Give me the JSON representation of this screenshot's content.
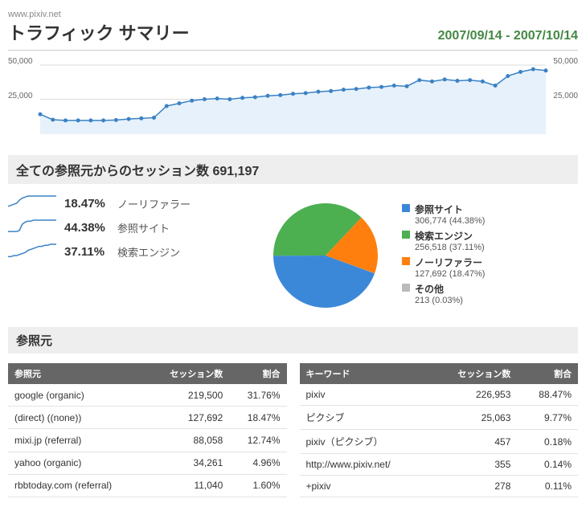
{
  "site_url": "www.pixiv.net",
  "page_title": "トラフィック サマリー",
  "date_range": "2007/09/14 - 2007/10/14",
  "main_chart": {
    "type": "area",
    "ymax": 50000,
    "ymid": 25000,
    "ymax_label": "50,000",
    "ymid_label": "25,000",
    "stroke": "#3b82c4",
    "fill": "#e6f1fb",
    "dot_fill": "#3b82c4",
    "grid_color": "#dddddd",
    "values": [
      14000,
      10000,
      9500,
      9500,
      9500,
      9500,
      9800,
      10500,
      11000,
      11500,
      20000,
      22000,
      24000,
      25000,
      25500,
      25000,
      26000,
      26500,
      27500,
      28000,
      29000,
      29500,
      30500,
      31000,
      32000,
      32500,
      33500,
      34000,
      35000,
      34500,
      39000,
      38000,
      39500,
      38500,
      39000,
      38000,
      35000,
      42000,
      45000,
      47000,
      46000
    ]
  },
  "summary_text_prefix": "全ての参照元からのセッション数 ",
  "summary_value": "691,197",
  "sources": [
    {
      "pct": "18.47%",
      "label": "ノーリファラー",
      "spark": [
        4,
        5,
        6,
        7,
        10,
        12,
        13,
        14,
        14,
        14,
        14,
        14,
        14,
        14,
        14,
        14,
        14,
        14
      ],
      "color": "#3b82c4"
    },
    {
      "pct": "44.38%",
      "label": "参照サイト",
      "spark": [
        3,
        3,
        3,
        3,
        4,
        10,
        12,
        13,
        13,
        14,
        14,
        14,
        14,
        14,
        14,
        14,
        14,
        14
      ],
      "color": "#3b82c4"
    },
    {
      "pct": "37.11%",
      "label": "検索エンジン",
      "spark": [
        2,
        2,
        3,
        3,
        4,
        5,
        6,
        8,
        9,
        10,
        11,
        12,
        12,
        13,
        13,
        14,
        14,
        14
      ],
      "color": "#3b82c4"
    }
  ],
  "pie": {
    "type": "pie",
    "slices": [
      {
        "title": "参照サイト",
        "sub": "306,774 (44.38%)",
        "pct": 44.38,
        "color": "#3c88d8"
      },
      {
        "title": "検索エンジン",
        "sub": "256,518 (37.11%)",
        "pct": 37.11,
        "color": "#4caf50"
      },
      {
        "title": "ノーリファラー",
        "sub": "127,692 (18.47%)",
        "pct": 18.47,
        "color": "#ff7f0e"
      },
      {
        "title": "その他",
        "sub": "213 (0.03%)",
        "pct": 0.03,
        "color": "#bbbbbb"
      }
    ]
  },
  "section_heading": "参照元",
  "table_headers": {
    "source": "参照元",
    "keyword": "キーワード",
    "sessions": "セッション数",
    "ratio": "割合"
  },
  "table_left": [
    {
      "name": "google (organic)",
      "sessions": "219,500",
      "ratio": "31.76%"
    },
    {
      "name": "(direct) ((none))",
      "sessions": "127,692",
      "ratio": "18.47%"
    },
    {
      "name": "mixi.jp (referral)",
      "sessions": "88,058",
      "ratio": "12.74%"
    },
    {
      "name": "yahoo (organic)",
      "sessions": "34,261",
      "ratio": "4.96%"
    },
    {
      "name": "rbbtoday.com (referral)",
      "sessions": "11,040",
      "ratio": "1.60%"
    }
  ],
  "table_right": [
    {
      "name": "pixiv",
      "sessions": "226,953",
      "ratio": "88.47%"
    },
    {
      "name": "ピクシブ",
      "sessions": "25,063",
      "ratio": "9.77%"
    },
    {
      "name": "pixiv（ピクシブ）",
      "sessions": "457",
      "ratio": "0.18%"
    },
    {
      "name": "http://www.pixiv.net/",
      "sessions": "355",
      "ratio": "0.14%"
    },
    {
      "name": "+pixiv",
      "sessions": "278",
      "ratio": "0.11%"
    }
  ]
}
